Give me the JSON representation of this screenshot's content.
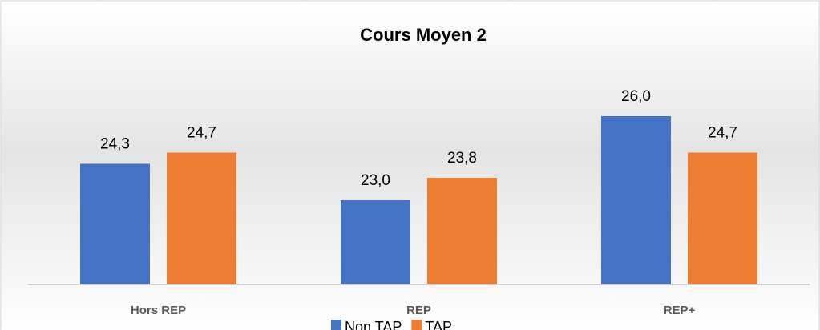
{
  "chart_data": {
    "type": "bar",
    "title": "Cours Moyen 2",
    "categories": [
      "Hors REP",
      "REP",
      "REP+"
    ],
    "series": [
      {
        "name": "Non TAP",
        "color": "#4472c4",
        "values": [
          24.3,
          23.0,
          26.0
        ],
        "value_labels": [
          "24,3",
          "23,0",
          "26,0"
        ]
      },
      {
        "name": "TAP",
        "color": "#ed7d31",
        "values": [
          24.7,
          23.8,
          24.7
        ],
        "value_labels": [
          "24,7",
          "23,8",
          "24,7"
        ]
      }
    ],
    "ylim": [
      20,
      29
    ],
    "legend": "bottom"
  }
}
